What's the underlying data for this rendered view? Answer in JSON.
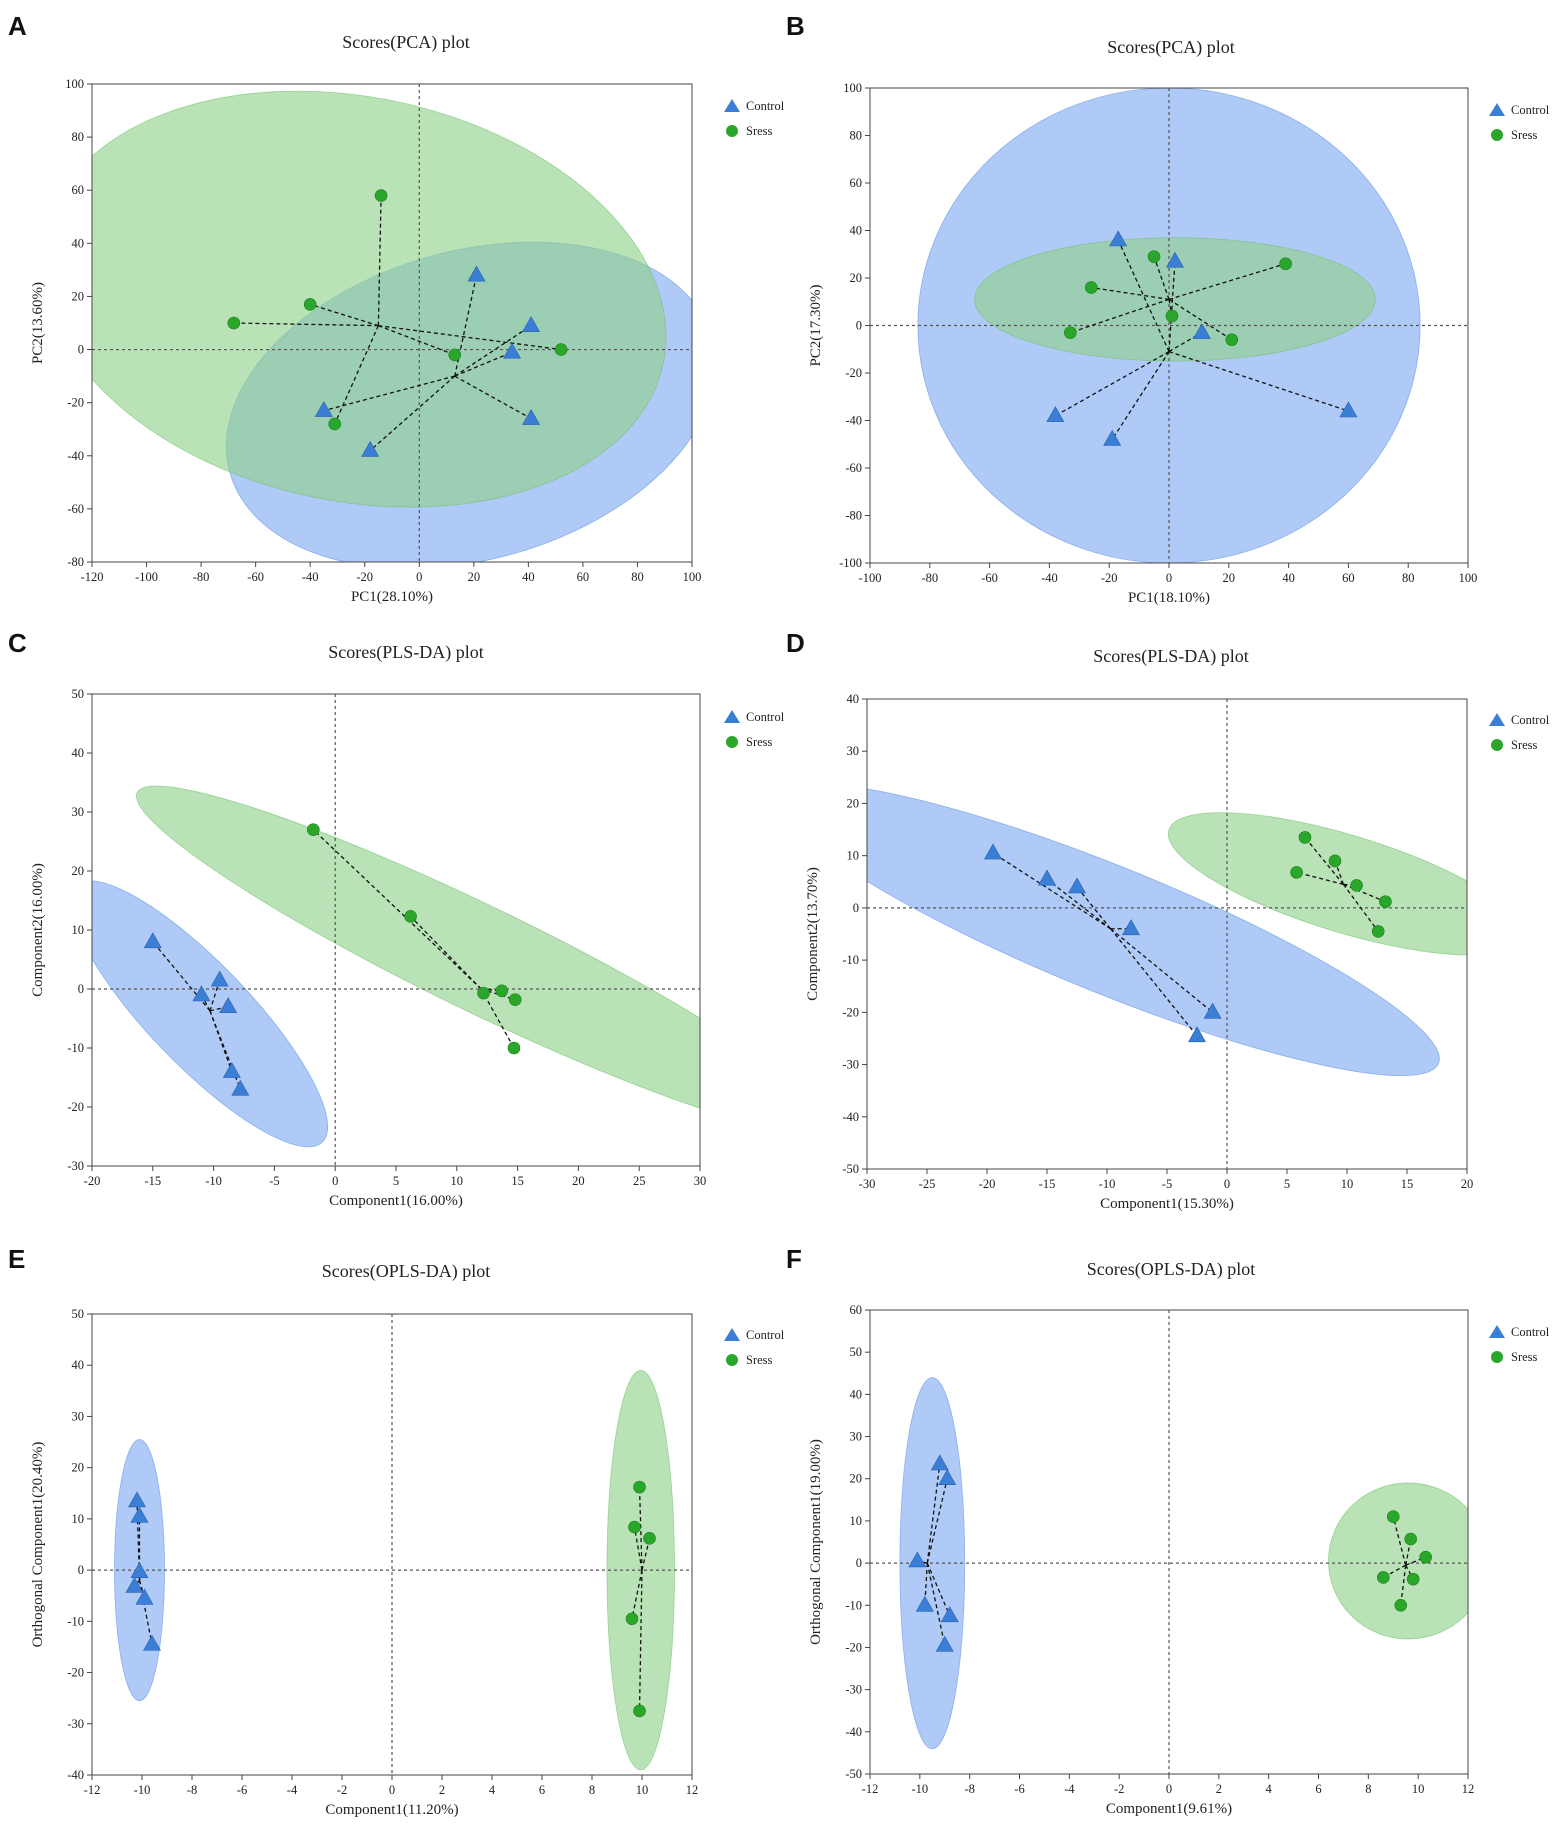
{
  "colors": {
    "control": "#3a7fd5",
    "stress": "#2aa62a",
    "control_ellipse": "#6f9ef0",
    "stress_ellipse": "#8fd08a",
    "axis": "#444444"
  },
  "chart_data": [
    {
      "panel": "A",
      "type": "scatter",
      "title": "Scores(PCA) plot",
      "xlabel": "PC1(28.10%)",
      "ylabel": "PC2(13.60%)",
      "xlim": [
        -120,
        100
      ],
      "ylim": [
        -80,
        100
      ],
      "xticks": [
        -120,
        -100,
        -80,
        -60,
        -40,
        -20,
        0,
        20,
        40,
        60,
        80,
        100
      ],
      "yticks": [
        -80,
        -60,
        -40,
        -20,
        0,
        20,
        40,
        60,
        80,
        100
      ],
      "legend": [
        "Control",
        "Sress"
      ],
      "series": [
        {
          "name": "Control",
          "marker": "triangle",
          "center": [
            13,
            -10
          ],
          "points": [
            [
              21,
              28
            ],
            [
              41,
              9
            ],
            [
              34,
              -1
            ],
            [
              41,
              -26
            ],
            [
              -18,
              -38
            ],
            [
              -35,
              -23
            ]
          ],
          "ellipse": {
            "cx": 19,
            "cy": -21,
            "rx": 92,
            "ry": 58,
            "angle": 16
          }
        },
        {
          "name": "Sress",
          "marker": "circle",
          "center": [
            -15,
            9
          ],
          "points": [
            [
              -14,
              58
            ],
            [
              -40,
              17
            ],
            [
              -68,
              10
            ],
            [
              52,
              0
            ],
            [
              13,
              -2
            ],
            [
              -31,
              -28
            ]
          ],
          "ellipse": {
            "cx": -24,
            "cy": 19,
            "rx": 116,
            "ry": 76,
            "angle": -12
          }
        }
      ]
    },
    {
      "panel": "B",
      "type": "scatter",
      "title": "Scores(PCA) plot",
      "xlabel": "PC1(18.10%)",
      "ylabel": "PC2(17.30%)",
      "xlim": [
        -100,
        100
      ],
      "ylim": [
        -100,
        100
      ],
      "xticks": [
        -100,
        -80,
        -60,
        -40,
        -20,
        0,
        20,
        40,
        60,
        80,
        100
      ],
      "yticks": [
        -100,
        -80,
        -60,
        -40,
        -20,
        0,
        20,
        40,
        60,
        80,
        100
      ],
      "legend": [
        "Control",
        "Sress"
      ],
      "series": [
        {
          "name": "Control",
          "marker": "triangle",
          "center": [
            0,
            -11
          ],
          "points": [
            [
              -17,
              36
            ],
            [
              2,
              27
            ],
            [
              11,
              -3
            ],
            [
              60,
              -36
            ],
            [
              -38,
              -38
            ],
            [
              -19,
              -48
            ]
          ],
          "ellipse": {
            "cx": 0,
            "cy": 0,
            "rx": 84,
            "ry": 100,
            "angle": 0
          }
        },
        {
          "name": "Sress",
          "marker": "circle",
          "center": [
            0,
            11
          ],
          "points": [
            [
              -5,
              29
            ],
            [
              39,
              26
            ],
            [
              -26,
              16
            ],
            [
              1,
              4
            ],
            [
              -33,
              -3
            ],
            [
              21,
              -6
            ]
          ],
          "ellipse": {
            "cx": 2,
            "cy": 11,
            "rx": 67,
            "ry": 26,
            "angle": 0
          }
        }
      ]
    },
    {
      "panel": "C",
      "type": "scatter",
      "title": "Scores(PLS-DA) plot",
      "xlabel": "Component1(16.00%)",
      "ylabel": "Component2(16.00%)",
      "xlim": [
        -20,
        30
      ],
      "ylim": [
        -30,
        50
      ],
      "xticks": [
        -20,
        -15,
        -10,
        -5,
        0,
        5,
        10,
        15,
        20,
        25,
        30
      ],
      "yticks": [
        -30,
        -20,
        -10,
        0,
        10,
        20,
        30,
        40,
        50
      ],
      "legend": [
        "Control",
        "Sress"
      ],
      "series": [
        {
          "name": "Control",
          "marker": "triangle",
          "center": [
            -10.3,
            -3.7
          ],
          "points": [
            [
              -15,
              8
            ],
            [
              -11,
              -1
            ],
            [
              -9.5,
              1.5
            ],
            [
              -8.8,
              -3
            ],
            [
              -8.5,
              -14
            ],
            [
              -7.8,
              -17
            ]
          ],
          "ellipse": {
            "cx": -11.2,
            "cy": -4.2,
            "rx": 24,
            "ry": 4.5,
            "angle": -65
          }
        },
        {
          "name": "Sress",
          "marker": "circle",
          "center": [
            12,
            0
          ],
          "points": [
            [
              -1.8,
              27
            ],
            [
              6.2,
              12.3
            ],
            [
              12.2,
              -0.7
            ],
            [
              13.7,
              -0.3
            ],
            [
              14.8,
              -1.8
            ],
            [
              14.7,
              -10
            ]
          ],
          "ellipse": {
            "cx": 12,
            "cy": 5,
            "rx": 40,
            "ry": 5.5,
            "angle": -45
          }
        }
      ]
    },
    {
      "panel": "D",
      "type": "scatter",
      "title": "Scores(PLS-DA) plot",
      "xlabel": "Component1(15.30%)",
      "ylabel": "Component2(13.70%)",
      "xlim": [
        -30,
        20
      ],
      "ylim": [
        -50,
        40
      ],
      "xticks": [
        -30,
        -25,
        -20,
        -15,
        -10,
        -5,
        0,
        5,
        10,
        15,
        20
      ],
      "yticks": [
        -50,
        -40,
        -30,
        -20,
        -10,
        0,
        10,
        20,
        30,
        40
      ],
      "legend": [
        "Control",
        "Sress"
      ],
      "series": [
        {
          "name": "Control",
          "marker": "triangle",
          "center": [
            -9.7,
            -4
          ],
          "points": [
            [
              -19.5,
              10.5
            ],
            [
              -15,
              5.5
            ],
            [
              -12.5,
              4
            ],
            [
              -8,
              -4
            ],
            [
              -1.2,
              -20
            ],
            [
              -2.5,
              -24.5
            ]
          ],
          "ellipse": {
            "cx": -9.8,
            "cy": -4.2,
            "rx": 37.5,
            "ry": 7,
            "angle": -43
          }
        },
        {
          "name": "Sress",
          "marker": "circle",
          "center": [
            9.7,
            4.5
          ],
          "points": [
            [
              6.5,
              13.5
            ],
            [
              9,
              9
            ],
            [
              5.8,
              6.8
            ],
            [
              10.8,
              4.3
            ],
            [
              13.2,
              1.2
            ],
            [
              12.6,
              -4.5
            ]
          ],
          "ellipse": {
            "cx": 9.9,
            "cy": 4.6,
            "rx": 18,
            "ry": 6,
            "angle": -35
          }
        }
      ]
    },
    {
      "panel": "E",
      "type": "scatter",
      "title": "Scores(OPLS-DA) plot",
      "xlabel": "Component1(11.20%)",
      "ylabel": "Orthogonal Component1(20.40%)",
      "xlim": [
        -12,
        12
      ],
      "ylim": [
        -40,
        50
      ],
      "xticks": [
        -12,
        -10,
        -8,
        -6,
        -4,
        -2,
        0,
        2,
        4,
        6,
        8,
        10,
        12
      ],
      "yticks": [
        -40,
        -30,
        -20,
        -10,
        0,
        10,
        20,
        30,
        40,
        50
      ],
      "legend": [
        "Control",
        "Sress"
      ],
      "series": [
        {
          "name": "Control",
          "marker": "triangle",
          "center": [
            -10.1,
            -2
          ],
          "points": [
            [
              -10.2,
              13.5
            ],
            [
              -10.1,
              10.5
            ],
            [
              -10.1,
              -0.3
            ],
            [
              -10.3,
              -3.2
            ],
            [
              -9.9,
              -5.5
            ],
            [
              -9.6,
              -14.5
            ]
          ],
          "ellipse": {
            "cx": -10.1,
            "cy": 0,
            "rx": 1.0,
            "ry": 25.5,
            "angle": 0
          }
        },
        {
          "name": "Sress",
          "marker": "circle",
          "center": [
            10,
            0
          ],
          "points": [
            [
              9.9,
              16.2
            ],
            [
              9.7,
              8.4
            ],
            [
              10.3,
              6.2
            ],
            [
              9.6,
              -9.5
            ],
            [
              9.9,
              -27.5
            ]
          ],
          "ellipse": {
            "cx": 9.95,
            "cy": 0,
            "rx": 1.35,
            "ry": 39,
            "angle": 0
          }
        }
      ]
    },
    {
      "panel": "F",
      "type": "scatter",
      "title": "Scores(OPLS-DA) plot",
      "xlabel": "Component1(9.61%)",
      "ylabel": "Orthogonal Component1(19.00%)",
      "xlim": [
        -12,
        12
      ],
      "ylim": [
        -50,
        60
      ],
      "xticks": [
        -12,
        -10,
        -8,
        -6,
        -4,
        -2,
        0,
        2,
        4,
        6,
        8,
        10,
        12
      ],
      "yticks": [
        -50,
        -40,
        -30,
        -20,
        -10,
        0,
        10,
        20,
        30,
        40,
        50,
        60
      ],
      "legend": [
        "Control",
        "Sress"
      ],
      "series": [
        {
          "name": "Control",
          "marker": "triangle",
          "center": [
            -9.7,
            0
          ],
          "points": [
            [
              -9.2,
              23.5
            ],
            [
              -8.9,
              20
            ],
            [
              -10.1,
              0.5
            ],
            [
              -9.8,
              -10
            ],
            [
              -8.8,
              -12.5
            ],
            [
              -9.0,
              -19.5
            ]
          ],
          "ellipse": {
            "cx": -9.5,
            "cy": 0,
            "rx": 1.3,
            "ry": 44,
            "angle": 0
          }
        },
        {
          "name": "Sress",
          "marker": "circle",
          "center": [
            9.5,
            -0.5
          ],
          "points": [
            [
              9.0,
              11
            ],
            [
              9.7,
              5.7
            ],
            [
              10.3,
              1.4
            ],
            [
              8.6,
              -3.4
            ],
            [
              9.8,
              -3.8
            ],
            [
              9.3,
              -10
            ]
          ],
          "ellipse": {
            "cx": 9.6,
            "cy": 0.5,
            "rx": 3.2,
            "ry": 18.5,
            "angle": 0
          }
        }
      ]
    }
  ]
}
